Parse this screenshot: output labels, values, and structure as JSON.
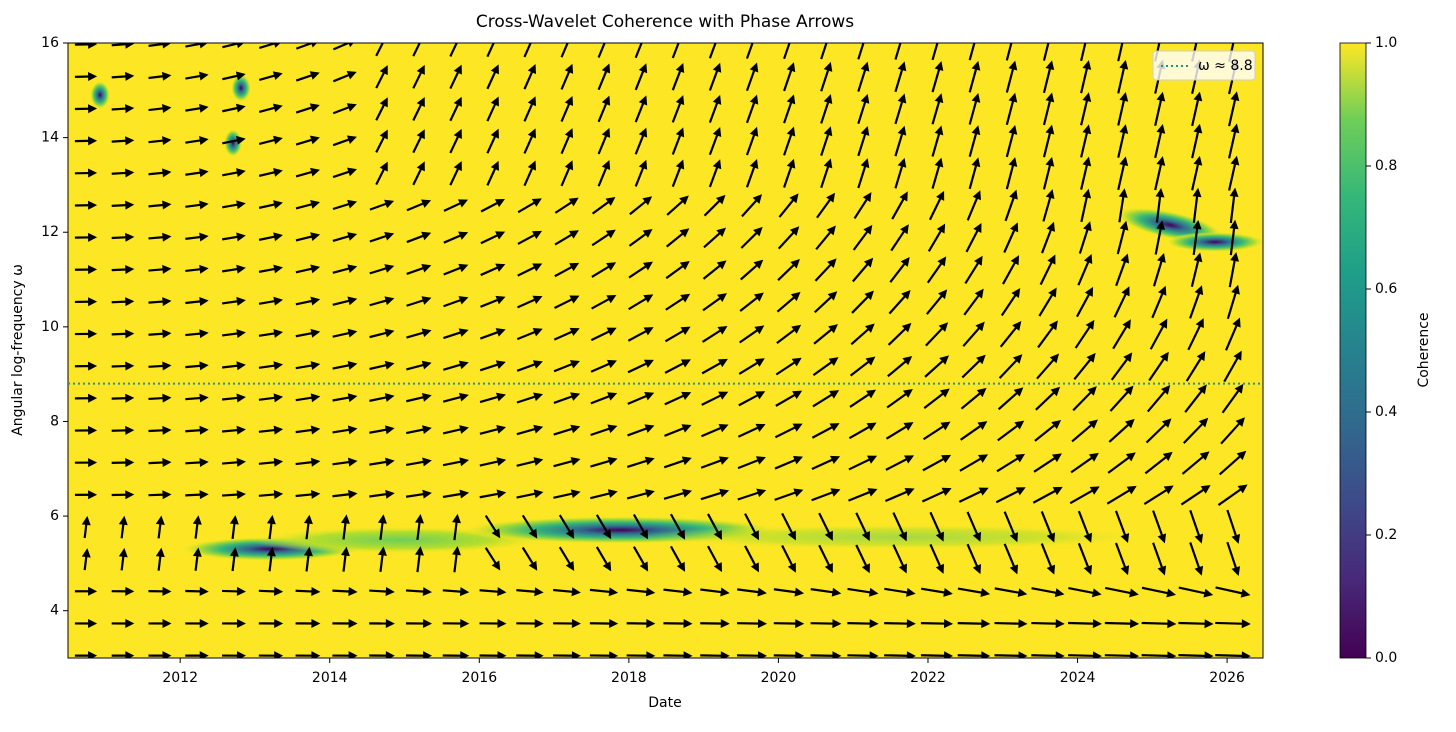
{
  "chart_data": {
    "type": "hline",
    "title": "Cross-Wavelet Coherence with Phase Arrows",
    "xlabel": "Date",
    "ylabel": "Angular log-frequency ω",
    "xlim": [
      2010.5,
      2026.48
    ],
    "xticks": [
      2012,
      2014,
      2016,
      2018,
      2020,
      2022,
      2024,
      2026
    ],
    "ylim": [
      3,
      16
    ],
    "yticks": [
      4,
      6,
      8,
      10,
      12,
      14,
      16
    ],
    "series": [
      {
        "name": "ω ≈ 8.8",
        "color": "#21918c",
        "values": [
          8.8
        ]
      }
    ],
    "legend": "upper right",
    "colorbar": {
      "label": "Coherence",
      "lim": [
        0,
        1
      ],
      "ticks": [
        {
          "value": 0,
          "label": "0.0"
        },
        0.2,
        0.4,
        0.6,
        0.8,
        {
          "value": 1,
          "label": "1.0"
        }
      ]
    }
  }
}
